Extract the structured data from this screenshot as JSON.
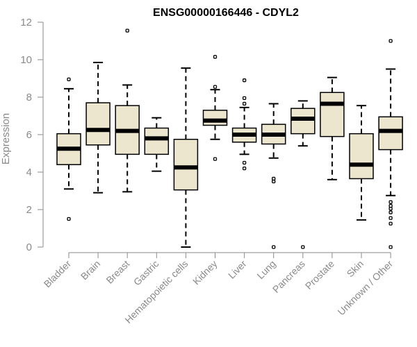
{
  "chart_data": {
    "type": "boxplot",
    "title": "ENSG00000166446 - CDYL2",
    "ylabel": "Expression",
    "xlabel": "",
    "ylim": [
      0,
      12
    ],
    "yticks": [
      0,
      2,
      4,
      6,
      8,
      10,
      12
    ],
    "grid": false,
    "colors": {
      "box_fill": "#ede6cf",
      "box_stroke": "#000000",
      "axis": "#8a8a8a",
      "label": "#8a8a8a"
    },
    "categories": [
      "Bladder",
      "Brain",
      "Breast",
      "Gastric",
      "Hematopoietic cells",
      "Kidney",
      "Liver",
      "Lung",
      "Pancreas",
      "Prostate",
      "Skin",
      "Unknown / Other"
    ],
    "boxes": [
      {
        "category": "Bladder",
        "whisker_low": 3.1,
        "q1": 4.4,
        "median": 5.25,
        "q3": 6.05,
        "whisker_high": 8.45,
        "outliers": [
          1.5,
          8.95
        ]
      },
      {
        "category": "Brain",
        "whisker_low": 2.9,
        "q1": 5.45,
        "median": 6.25,
        "q3": 7.7,
        "whisker_high": 9.85,
        "outliers": []
      },
      {
        "category": "Breast",
        "whisker_low": 2.95,
        "q1": 4.95,
        "median": 6.2,
        "q3": 7.55,
        "whisker_high": 8.65,
        "outliers": [
          11.55
        ]
      },
      {
        "category": "Gastric",
        "whisker_low": 4.05,
        "q1": 4.95,
        "median": 5.8,
        "q3": 6.35,
        "whisker_high": 6.9,
        "outliers": []
      },
      {
        "category": "Hematopoietic cells",
        "whisker_low": 0.0,
        "q1": 3.05,
        "median": 4.25,
        "q3": 5.75,
        "whisker_high": 9.55,
        "outliers": []
      },
      {
        "category": "Kidney",
        "whisker_low": 5.75,
        "q1": 6.5,
        "median": 6.75,
        "q3": 7.3,
        "whisker_high": 8.4,
        "outliers": [
          4.7,
          8.55,
          10.15
        ]
      },
      {
        "category": "Liver",
        "whisker_low": 4.95,
        "q1": 5.6,
        "median": 6.0,
        "q3": 6.35,
        "whisker_high": 7.45,
        "outliers": [
          4.2,
          4.5,
          7.65,
          7.95,
          8.9
        ]
      },
      {
        "category": "Lung",
        "whisker_low": 4.75,
        "q1": 5.5,
        "median": 6.0,
        "q3": 6.55,
        "whisker_high": 7.65,
        "outliers": [
          0.0,
          3.5,
          3.65
        ]
      },
      {
        "category": "Pancreas",
        "whisker_low": 5.4,
        "q1": 6.05,
        "median": 6.85,
        "q3": 7.4,
        "whisker_high": 7.8,
        "outliers": [
          0.0
        ]
      },
      {
        "category": "Prostate",
        "whisker_low": 3.6,
        "q1": 5.9,
        "median": 7.65,
        "q3": 8.25,
        "whisker_high": 9.05,
        "outliers": []
      },
      {
        "category": "Skin",
        "whisker_low": 1.45,
        "q1": 3.65,
        "median": 4.4,
        "q3": 6.05,
        "whisker_high": 7.55,
        "outliers": []
      },
      {
        "category": "Unknown / Other",
        "whisker_low": 2.75,
        "q1": 5.2,
        "median": 6.2,
        "q3": 6.95,
        "whisker_high": 9.5,
        "outliers": [
          0.0,
          1.25,
          1.55,
          1.85,
          2.05,
          2.2,
          2.4,
          11.0
        ]
      }
    ]
  }
}
